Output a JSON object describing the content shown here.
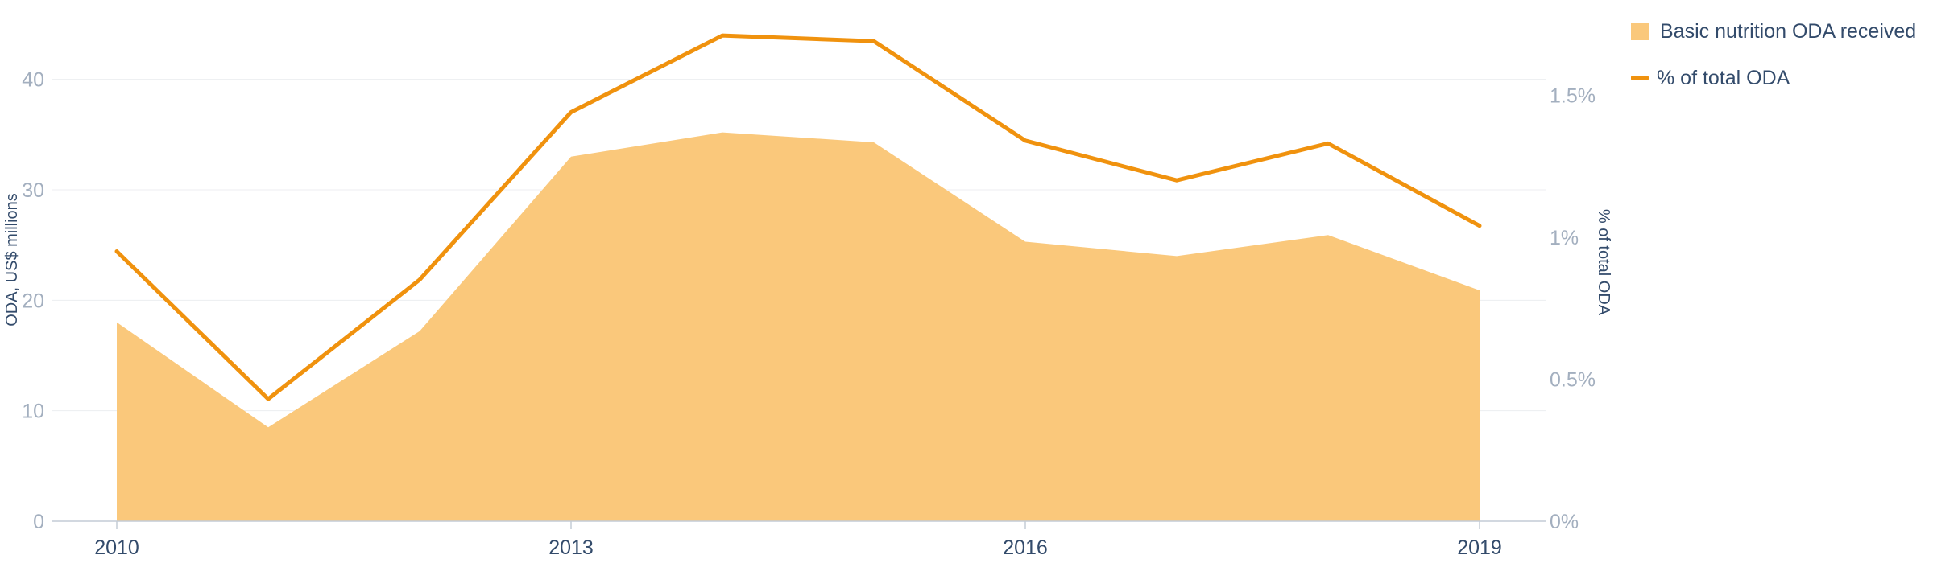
{
  "colors": {
    "area": "#fac87b",
    "line": "#f0920e",
    "grid": "#eceef1",
    "axis": "#c4ccd6",
    "tick": "#a3afbf",
    "label": "#334b6b"
  },
  "legend": {
    "area_label": "Basic nutrition ODA received",
    "line_label": "% of total ODA"
  },
  "chart_data": {
    "type": "area",
    "x": [
      2010,
      2011,
      2012,
      2013,
      2014,
      2015,
      2016,
      2017,
      2018,
      2019
    ],
    "x_tick_labels": [
      "2010",
      "2013",
      "2016",
      "2019"
    ],
    "ylabel_left": "ODA, US$ millions",
    "ylabel_right": "% of total ODA",
    "ylim_left": [
      0,
      45
    ],
    "ylim_right": [
      0,
      1.75
    ],
    "left_ticks": [
      "0",
      "10",
      "20",
      "30",
      "40"
    ],
    "right_ticks": [
      "0%",
      "0.5%",
      "1%",
      "1.5%"
    ],
    "series": [
      {
        "name": "Basic nutrition ODA received",
        "type": "area",
        "axis": "left",
        "values": [
          18.0,
          8.5,
          17.2,
          33.0,
          35.2,
          34.3,
          25.3,
          24.0,
          25.9,
          20.9
        ]
      },
      {
        "name": "% of total ODA",
        "type": "line",
        "axis": "right",
        "values": [
          0.95,
          0.43,
          0.85,
          1.44,
          1.71,
          1.69,
          1.34,
          1.2,
          1.33,
          1.04
        ]
      }
    ],
    "grid": true,
    "legend_position": "top-right"
  }
}
